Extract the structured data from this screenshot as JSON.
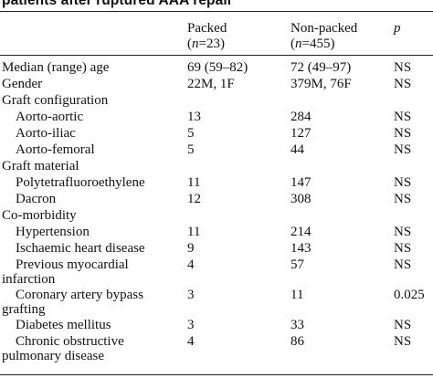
{
  "caption": "patients after ruptured AAA repair",
  "header": {
    "packed": {
      "label": "Packed",
      "n_prefix": "(",
      "n_symbol": "n",
      "n_value": "=23)"
    },
    "nonpacked": {
      "label": "Non-packed",
      "n_prefix": "(",
      "n_symbol": "n",
      "n_value": "=455)"
    },
    "p": "p"
  },
  "rows": [
    {
      "type": "data",
      "label": "Median (range) age",
      "packed": "69 (59–82)",
      "nonpacked": "72 (49–97)",
      "p": "NS"
    },
    {
      "type": "data",
      "label": "Gender",
      "packed": "22M, 1F",
      "nonpacked": "379M, 76F",
      "p": "NS"
    },
    {
      "type": "group",
      "label": "Graft configuration"
    },
    {
      "type": "sub",
      "label": "Aorto-aortic",
      "packed": "13",
      "nonpacked": "284",
      "p": "NS"
    },
    {
      "type": "sub",
      "label": "Aorto-iliac",
      "packed": "5",
      "nonpacked": "127",
      "p": "NS"
    },
    {
      "type": "sub",
      "label": "Aorto-femoral",
      "packed": "5",
      "nonpacked": "44",
      "p": "NS"
    },
    {
      "type": "group",
      "label": "Graft material"
    },
    {
      "type": "sub",
      "label": "Polytetrafluoroethylene",
      "packed": "11",
      "nonpacked": "147",
      "p": "NS"
    },
    {
      "type": "sub",
      "label": "Dacron",
      "packed": "12",
      "nonpacked": "308",
      "p": "NS"
    },
    {
      "type": "group",
      "label": "Co-morbidity"
    },
    {
      "type": "sub",
      "label": "Hypertension",
      "packed": "11",
      "nonpacked": "214",
      "p": "NS"
    },
    {
      "type": "sub",
      "label": "Ischaemic heart disease",
      "packed": "9",
      "nonpacked": "143",
      "p": "NS"
    },
    {
      "type": "sub2",
      "label": "Previous myocardial",
      "label2": "infarction",
      "packed": "4",
      "nonpacked": "57",
      "p": "NS"
    },
    {
      "type": "sub2",
      "label": "Coronary artery bypass",
      "label2": "grafting",
      "packed": "3",
      "nonpacked": "11",
      "p": "0.025"
    },
    {
      "type": "sub",
      "label": "Diabetes mellitus",
      "packed": "3",
      "nonpacked": "33",
      "p": "NS"
    },
    {
      "type": "sub2",
      "label": "Chronic obstructive",
      "label2": "pulmonary disease",
      "packed": "4",
      "nonpacked": "86",
      "p": "NS"
    }
  ]
}
